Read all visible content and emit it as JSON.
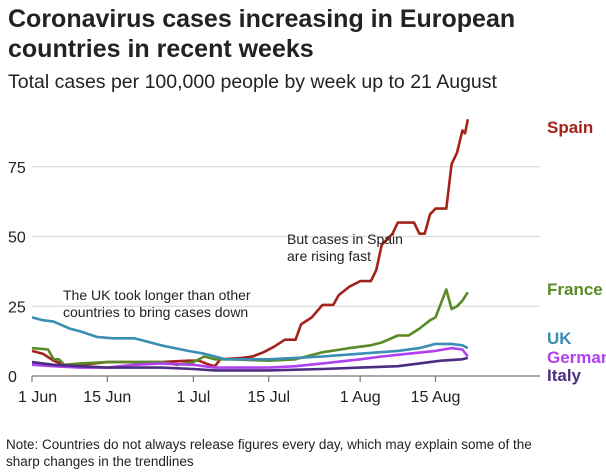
{
  "chart_data": {
    "type": "line",
    "title": "Coronavirus cases increasing in European countries in recent weeks",
    "subtitle": "Total cases per 100,000 people by week up to 21 August",
    "xlabel": "",
    "ylabel": "",
    "x_ticks": [
      "1 Jun",
      "15 Jun",
      "1 Jul",
      "15 Jul",
      "1 Aug",
      "15 Aug"
    ],
    "y_ticks": [
      0,
      25,
      50,
      75
    ],
    "ylim": [
      0,
      95
    ],
    "xlim": [
      "1 Jun",
      "21 Aug"
    ],
    "grid": true,
    "series": [
      {
        "name": "Spain",
        "color": "#a3231b",
        "points": [
          [
            "1 Jun",
            9
          ],
          [
            "3 Jun",
            8
          ],
          [
            "5 Jun",
            5.5
          ],
          [
            "7 Jun",
            4
          ],
          [
            "10 Jun",
            4
          ],
          [
            "15 Jun",
            5
          ],
          [
            "20 Jun",
            5
          ],
          [
            "25 Jun",
            5
          ],
          [
            "30 Jun",
            5.5
          ],
          [
            "2 Jul",
            5.5
          ],
          [
            "4 Jul",
            4
          ],
          [
            "5 Jul",
            3.5
          ],
          [
            "6 Jul",
            6
          ],
          [
            "10 Jul",
            6.5
          ],
          [
            "12 Jul",
            7
          ],
          [
            "14 Jul",
            8.5
          ],
          [
            "16 Jul",
            10.5
          ],
          [
            "18 Jul",
            13
          ],
          [
            "20 Jul",
            13
          ],
          [
            "21 Jul",
            18.5
          ],
          [
            "23 Jul",
            21
          ],
          [
            "25 Jul",
            25.5
          ],
          [
            "27 Jul",
            25.5
          ],
          [
            "28 Jul",
            29
          ],
          [
            "30 Jul",
            32
          ],
          [
            "1 Aug",
            34
          ],
          [
            "3 Aug",
            34
          ],
          [
            "4 Aug",
            38
          ],
          [
            "5 Aug",
            47
          ],
          [
            "7 Aug",
            51
          ],
          [
            "8 Aug",
            55
          ],
          [
            "11 Aug",
            55
          ],
          [
            "12 Aug",
            51
          ],
          [
            "13 Aug",
            51
          ],
          [
            "14 Aug",
            58
          ],
          [
            "15 Aug",
            60
          ],
          [
            "17 Aug",
            60
          ],
          [
            "18 Aug",
            76
          ],
          [
            "19 Aug",
            80
          ],
          [
            "20 Aug",
            88
          ],
          [
            "20.5 Aug",
            87
          ],
          [
            "21 Aug",
            92
          ]
        ]
      },
      {
        "name": "France",
        "color": "#5a8a24",
        "points": [
          [
            "1 Jun",
            10
          ],
          [
            "4 Jun",
            9.5
          ],
          [
            "5 Jun",
            6
          ],
          [
            "6 Jun",
            6
          ],
          [
            "7 Jun",
            4
          ],
          [
            "10 Jun",
            4.5
          ],
          [
            "15 Jun",
            5
          ],
          [
            "25 Jun",
            5
          ],
          [
            "28 Jun",
            4
          ],
          [
            "1 Jul",
            5
          ],
          [
            "3 Jul",
            7
          ],
          [
            "5 Jul",
            6
          ],
          [
            "8 Jul",
            6
          ],
          [
            "15 Jul",
            5.5
          ],
          [
            "20 Jul",
            6
          ],
          [
            "25 Jul",
            8.5
          ],
          [
            "30 Jul",
            10
          ],
          [
            "3 Aug",
            11
          ],
          [
            "5 Aug",
            12
          ],
          [
            "8 Aug",
            14.5
          ],
          [
            "10 Aug",
            14.5
          ],
          [
            "12 Aug",
            17
          ],
          [
            "14 Aug",
            20
          ],
          [
            "15 Aug",
            21
          ],
          [
            "16 Aug",
            26
          ],
          [
            "17 Aug",
            31
          ],
          [
            "18 Aug",
            24
          ],
          [
            "19 Aug",
            25
          ],
          [
            "20 Aug",
            27
          ],
          [
            "21 Aug",
            30
          ]
        ]
      },
      {
        "name": "UK",
        "color": "#3a8db3",
        "points": [
          [
            "1 Jun",
            21
          ],
          [
            "3 Jun",
            20
          ],
          [
            "5 Jun",
            19.5
          ],
          [
            "8 Jun",
            17
          ],
          [
            "10 Jun",
            16
          ],
          [
            "13 Jun",
            14
          ],
          [
            "16 Jun",
            13.5
          ],
          [
            "20 Jun",
            13.5
          ],
          [
            "25 Jun",
            11
          ],
          [
            "30 Jun",
            9
          ],
          [
            "3 Jul",
            8
          ],
          [
            "7 Jul",
            6
          ],
          [
            "15 Jul",
            6
          ],
          [
            "20 Jul",
            6.5
          ],
          [
            "25 Jul",
            7
          ],
          [
            "1 Aug",
            8
          ],
          [
            "8 Aug",
            9
          ],
          [
            "12 Aug",
            10
          ],
          [
            "15 Aug",
            11.5
          ],
          [
            "18 Aug",
            11.5
          ],
          [
            "20 Aug",
            11
          ],
          [
            "21 Aug",
            10
          ]
        ]
      },
      {
        "name": "Germany",
        "color": "#b040f0",
        "points": [
          [
            "1 Jun",
            4
          ],
          [
            "5 Jun",
            3.5
          ],
          [
            "10 Jun",
            3
          ],
          [
            "15 Jun",
            3
          ],
          [
            "20 Jun",
            4
          ],
          [
            "25 Jun",
            4.5
          ],
          [
            "1 Jul",
            4
          ],
          [
            "5 Jul",
            3
          ],
          [
            "10 Jul",
            3
          ],
          [
            "15 Jul",
            3
          ],
          [
            "20 Jul",
            3.5
          ],
          [
            "25 Jul",
            4.5
          ],
          [
            "1 Aug",
            6
          ],
          [
            "5 Aug",
            7
          ],
          [
            "10 Aug",
            8
          ],
          [
            "15 Aug",
            9
          ],
          [
            "18 Aug",
            10
          ],
          [
            "20 Aug",
            9.5
          ],
          [
            "21 Aug",
            7
          ]
        ]
      },
      {
        "name": "Italy",
        "color": "#4b2d82",
        "points": [
          [
            "1 Jun",
            5
          ],
          [
            "5 Jun",
            4
          ],
          [
            "10 Jun",
            3.5
          ],
          [
            "15 Jun",
            3
          ],
          [
            "20 Jun",
            3
          ],
          [
            "25 Jun",
            3
          ],
          [
            "1 Jul",
            2.5
          ],
          [
            "5 Jul",
            2
          ],
          [
            "15 Jul",
            2
          ],
          [
            "25 Jul",
            2.5
          ],
          [
            "1 Aug",
            3
          ],
          [
            "8 Aug",
            3.5
          ],
          [
            "12 Aug",
            4.5
          ],
          [
            "16 Aug",
            5.5
          ],
          [
            "20 Aug",
            6
          ],
          [
            "21 Aug",
            6.5
          ]
        ]
      }
    ],
    "annotations": [
      "The UK took longer than other countries to bring cases down",
      "But cases in Spain are rising fast"
    ]
  },
  "annotation_uk": [
    "The UK took longer than other",
    "countries to bring cases down"
  ],
  "annotation_spain": [
    "But cases in Spain",
    "are rising fast"
  ],
  "note": [
    "Note: Countries do not always release figures every day, which may explain some of the",
    "sharp changes in the trendlines"
  ]
}
